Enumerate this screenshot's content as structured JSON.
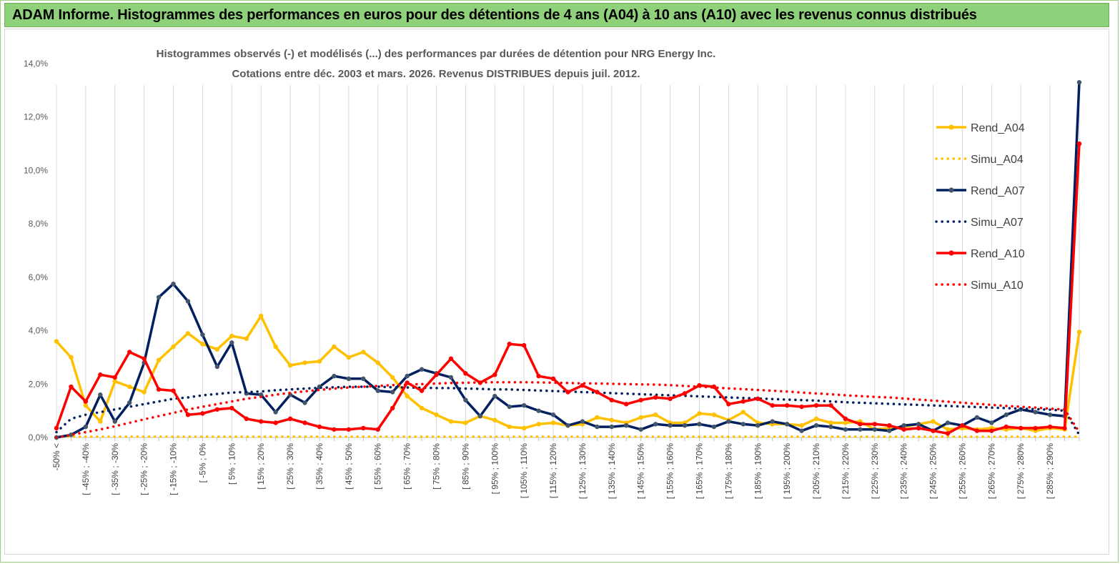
{
  "banner": {
    "title": "ADAM Informe. Histogrammes des performances en euros pour des détentions de 4 ans (A04) à 10 ans (A10) avec les revenus connus distribués"
  },
  "chart_data": {
    "type": "line",
    "title": "Histogrammes observés (-) et modélisés (...) des performances par durées de détention pour NRG Energy Inc.",
    "subtitle": "Cotations entre déc. 2003 et mars. 2026. Revenus DISTRIBUES depuis juil. 2012.",
    "ylim": [
      0,
      14
    ],
    "yticks": [
      "0,0%",
      "2,0%",
      "4,0%",
      "6,0%",
      "8,0%",
      "10,0%",
      "12,0%",
      "14,0%"
    ],
    "legend_position": "right",
    "x_labels": [
      "-50% <",
      "[ -45% ; -40%",
      "[ -35% ; -30%",
      "[ -25% ; -20%",
      "[ -15% ; -10%",
      "[ -5% ; 0%",
      "[ 5% ; 10%",
      "[ 15% ; 20%",
      "[ 25% ; 30%",
      "[ 35% ; 40%",
      "[ 45% ; 50%",
      "[ 55% ; 60%",
      "[ 65% ; 70%",
      "[ 75% ; 80%",
      "[ 85% ; 90%",
      "[ 95% ; 100%",
      "[ 105% ; 110%",
      "[ 115% ; 120%",
      "[ 125% ; 130%",
      "[ 135% ; 140%",
      "[ 145% ; 150%",
      "[ 155% ; 160%",
      "[ 165% ; 170%",
      "[ 175% ; 180%",
      "[ 185% ; 190%",
      "[ 195% ; 200%",
      "[ 205% ; 210%",
      "[ 215% ; 220%",
      "[ 225% ; 230%",
      "[ 235% ; 240%",
      "[ 245% ; 250%",
      "[ 255% ; 260%",
      "[ 265% ; 270%",
      "[ 275% ; 280%",
      "[ 285% ; 290%"
    ],
    "series": [
      {
        "name": "Rend_A04",
        "style": "solid",
        "color": "#ffc000",
        "values": [
          3.6,
          3.0,
          1.2,
          0.6,
          2.1,
          1.9,
          1.7,
          2.9,
          3.4,
          3.9,
          3.5,
          3.3,
          3.8,
          3.7,
          4.55,
          3.4,
          2.7,
          2.8,
          2.85,
          3.4,
          3.0,
          3.2,
          2.8,
          2.25,
          1.55,
          1.1,
          0.85,
          0.6,
          0.55,
          0.8,
          0.65,
          0.4,
          0.35,
          0.5,
          0.55,
          0.45,
          0.5,
          0.75,
          0.65,
          0.55,
          0.75,
          0.85,
          0.55,
          0.55,
          0.9,
          0.85,
          0.65,
          0.95,
          0.55,
          0.5,
          0.5,
          0.45,
          0.7,
          0.55,
          0.55,
          0.6,
          0.3,
          0.35,
          0.4,
          0.5,
          0.6,
          0.3,
          0.35,
          0.3,
          0.35,
          0.3,
          0.35,
          0.25,
          0.35,
          0.3,
          3.95
        ]
      },
      {
        "name": "Simu_A04",
        "style": "dotted",
        "color": "#ffc000",
        "values": [
          0.03,
          0.03,
          0.03,
          0.03,
          0.03,
          0.03,
          0.03,
          0.03,
          0.03,
          0.03,
          0.03,
          0.03,
          0.03,
          0.03,
          0.03,
          0.03,
          0.03,
          0.03,
          0.03,
          0.03,
          0.03,
          0.03,
          0.03,
          0.03,
          0.03,
          0.03,
          0.03,
          0.03,
          0.03,
          0.03,
          0.03,
          0.03,
          0.03,
          0.03,
          0.03,
          0.03,
          0.03,
          0.03,
          0.03,
          0.03,
          0.03,
          0.03,
          0.03,
          0.03,
          0.03,
          0.03,
          0.03,
          0.03,
          0.03,
          0.03,
          0.03,
          0.03,
          0.03,
          0.03,
          0.03,
          0.03,
          0.03,
          0.03,
          0.03,
          0.03,
          0.03,
          0.03,
          0.03,
          0.03,
          0.03,
          0.03,
          0.03,
          0.03,
          0.03,
          0.03,
          0.03
        ]
      },
      {
        "name": "Rend_A07",
        "style": "solid",
        "color": "#002060",
        "values": [
          0.0,
          0.1,
          0.4,
          1.6,
          0.6,
          1.3,
          2.8,
          5.25,
          5.75,
          5.1,
          3.85,
          2.65,
          3.55,
          1.65,
          1.6,
          0.95,
          1.6,
          1.3,
          1.9,
          2.3,
          2.2,
          2.2,
          1.75,
          1.7,
          2.3,
          2.55,
          2.4,
          2.25,
          1.4,
          0.8,
          1.55,
          1.15,
          1.2,
          1.0,
          0.85,
          0.45,
          0.6,
          0.4,
          0.4,
          0.45,
          0.3,
          0.5,
          0.45,
          0.45,
          0.5,
          0.4,
          0.6,
          0.5,
          0.45,
          0.6,
          0.5,
          0.25,
          0.45,
          0.4,
          0.3,
          0.3,
          0.3,
          0.25,
          0.45,
          0.5,
          0.25,
          0.55,
          0.45,
          0.75,
          0.55,
          0.85,
          1.05,
          0.95,
          0.85,
          0.8,
          13.3
        ]
      },
      {
        "name": "Simu_A07",
        "style": "dotted",
        "color": "#002060",
        "values": [
          0.2,
          0.7,
          0.85,
          0.95,
          1.05,
          1.15,
          1.25,
          1.35,
          1.45,
          1.5,
          1.58,
          1.63,
          1.68,
          1.7,
          1.72,
          1.77,
          1.8,
          1.83,
          1.86,
          1.88,
          1.9,
          1.9,
          1.9,
          1.88,
          1.87,
          1.86,
          1.85,
          1.85,
          1.83,
          1.82,
          1.8,
          1.8,
          1.78,
          1.76,
          1.74,
          1.72,
          1.7,
          1.68,
          1.66,
          1.64,
          1.62,
          1.6,
          1.58,
          1.56,
          1.54,
          1.52,
          1.5,
          1.48,
          1.46,
          1.44,
          1.42,
          1.4,
          1.38,
          1.35,
          1.32,
          1.3,
          1.28,
          1.26,
          1.24,
          1.22,
          1.2,
          1.18,
          1.16,
          1.14,
          1.12,
          1.1,
          1.08,
          1.06,
          1.04,
          1.0,
          0.1
        ]
      },
      {
        "name": "Rend_A10",
        "style": "solid",
        "color": "#ff0000",
        "values": [
          0.35,
          1.9,
          1.35,
          2.35,
          2.25,
          3.2,
          2.95,
          1.8,
          1.75,
          0.85,
          0.9,
          1.05,
          1.1,
          0.7,
          0.6,
          0.55,
          0.7,
          0.55,
          0.4,
          0.3,
          0.3,
          0.35,
          0.3,
          1.1,
          2.05,
          1.75,
          2.35,
          2.95,
          2.4,
          2.05,
          2.35,
          3.5,
          3.45,
          2.3,
          2.2,
          1.7,
          1.95,
          1.7,
          1.4,
          1.25,
          1.4,
          1.5,
          1.45,
          1.65,
          1.95,
          1.9,
          1.25,
          1.35,
          1.45,
          1.2,
          1.2,
          1.15,
          1.2,
          1.2,
          0.7,
          0.5,
          0.5,
          0.45,
          0.3,
          0.35,
          0.25,
          0.15,
          0.45,
          0.25,
          0.25,
          0.4,
          0.35,
          0.35,
          0.4,
          0.35,
          11.0
        ]
      },
      {
        "name": "Simu_A10",
        "style": "dotted",
        "color": "#ff0000",
        "values": [
          0.0,
          0.1,
          0.2,
          0.3,
          0.42,
          0.55,
          0.68,
          0.8,
          0.92,
          1.05,
          1.15,
          1.25,
          1.35,
          1.45,
          1.52,
          1.6,
          1.67,
          1.73,
          1.78,
          1.83,
          1.87,
          1.9,
          1.93,
          1.96,
          1.98,
          2.0,
          2.02,
          2.04,
          2.05,
          2.06,
          2.07,
          2.07,
          2.07,
          2.06,
          2.05,
          2.04,
          2.03,
          2.02,
          2.01,
          2.0,
          1.99,
          1.98,
          1.96,
          1.93,
          1.9,
          1.87,
          1.84,
          1.81,
          1.78,
          1.75,
          1.72,
          1.68,
          1.65,
          1.62,
          1.58,
          1.55,
          1.52,
          1.5,
          1.46,
          1.42,
          1.38,
          1.34,
          1.3,
          1.26,
          1.22,
          1.18,
          1.15,
          1.12,
          1.08,
          1.05,
          0.2
        ]
      }
    ]
  }
}
